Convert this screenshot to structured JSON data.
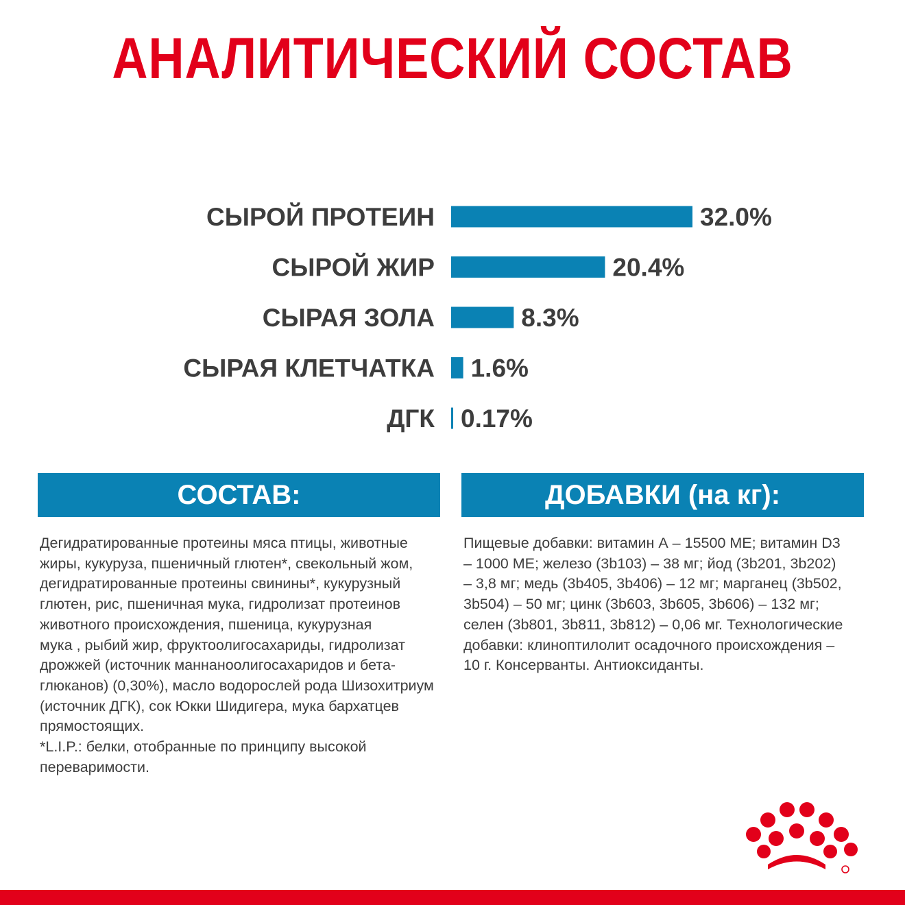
{
  "title": "АНАЛИТИЧЕСКИЙ СОСТАВ",
  "chart_data": {
    "type": "bar",
    "orientation": "horizontal",
    "categories": [
      "СЫРОЙ ПРОТЕИН",
      "СЫРОЙ ЖИР",
      "СЫРАЯ ЗОЛА",
      "СЫРАЯ КЛЕТЧАТКА",
      "ДГК"
    ],
    "values": [
      32.0,
      20.4,
      8.3,
      1.6,
      0.17
    ],
    "value_labels": [
      "32.0%",
      "20.4%",
      "8.3%",
      "1.6%",
      "0.17%"
    ],
    "xlim": [
      0,
      32
    ],
    "grid": false,
    "bar_color": "#0a82b4"
  },
  "composition": {
    "heading": "СОСТАВ:",
    "text": "Дегидратированные протеины мяса птицы, животные\nжиры, кукуруза, пшеничный глютен*, свекольный жом,\nдегидратированные протеины свинины*, кукурузный\nглютен, рис, пшеничная мука, гидролизат протеинов\nживотного происхождения, пшеница, кукурузная\nмука , рыбий жир, фруктоолигосахариды, гидролизат\nдрожжей (источник маннаноолигосахаридов и бета-\nглюканов) (0,30%), масло водорослей рода Шизохитриум\n(источник ДГК), сок Юкки Шидигера, мука бархатцев\nпрямостоящих.\n*L.I.P.: белки, отобранные по принципу высокой\nпереваримости."
  },
  "additives": {
    "heading": "ДОБАВКИ (на кг):",
    "text": "Пищевые добавки: витамин А – 15500 МЕ; витамин D3\n– 1000 МЕ; железо (3b103) – 38 мг; йод (3b201, 3b202)\n– 3,8 мг; медь (3b405, 3b406) – 12 мг; марганец (3b502,\n3b504) – 50 мг; цинк (3b603, 3b605, 3b606) – 132 мг;\nселен (3b801, 3b811, 3b812) – 0,06 мг. Технологические\nдобавки: клиноптилолит осадочного происхождения –\n10 г. Консерванты. Антиоксиданты."
  },
  "colors": {
    "title_red": "#e2001a",
    "accent_blue": "#0a82b4",
    "text_gray": "#3d3d3d"
  },
  "logo": {
    "icon": "royal-canin-crown-icon"
  }
}
